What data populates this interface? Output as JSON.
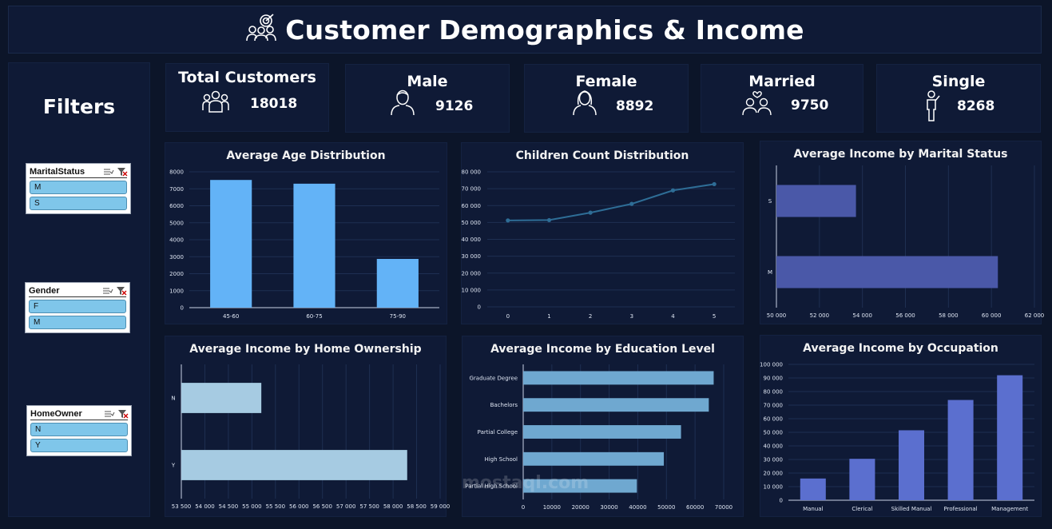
{
  "header": {
    "title": "Customer Demographics & Income",
    "icon": "target-audience-icon"
  },
  "filters": {
    "title": "Filters",
    "slicers": [
      {
        "name": "MaritalStatus",
        "items": [
          "M",
          "S"
        ]
      },
      {
        "name": "Gender",
        "items": [
          "F",
          "M"
        ]
      },
      {
        "name": "HomeOwner",
        "items": [
          "N",
          "Y"
        ]
      }
    ]
  },
  "kpis": [
    {
      "label": "Total Customers",
      "value": "18018",
      "icon": "group-icon"
    },
    {
      "label": "Male",
      "value": "9126",
      "icon": "male-user-icon"
    },
    {
      "label": "Female",
      "value": "8892",
      "icon": "female-user-icon"
    },
    {
      "label": "Married",
      "value": "9750",
      "icon": "couple-icon"
    },
    {
      "label": "Single",
      "value": "8268",
      "icon": "single-person-icon"
    }
  ],
  "watermark": "mostaql.com",
  "chart_data": [
    {
      "id": "age",
      "type": "bar",
      "title": "Average Age Distribution",
      "categories": [
        "45-60",
        "60-75",
        "75-90"
      ],
      "values": [
        7520,
        7300,
        2870
      ],
      "ylim": [
        0,
        8000
      ],
      "yticks": [
        0,
        1000,
        2000,
        3000,
        4000,
        5000,
        6000,
        7000,
        8000
      ],
      "grid": true,
      "color": "#63b3f7"
    },
    {
      "id": "children",
      "type": "line",
      "title": "Children Count Distribution",
      "x": [
        0,
        1,
        2,
        3,
        4,
        5
      ],
      "values": [
        51200,
        51400,
        55800,
        61000,
        69000,
        72700
      ],
      "ylim": [
        0,
        80000
      ],
      "yticks": [
        0,
        10000,
        20000,
        30000,
        40000,
        50000,
        60000,
        70000,
        80000
      ],
      "ytick_labels": [
        "0",
        "10 000",
        "20 000",
        "30 000",
        "40 000",
        "50 000",
        "60 000",
        "70 000",
        "80 000"
      ],
      "grid": true,
      "color": "#2e6d96"
    },
    {
      "id": "marital",
      "type": "bar",
      "orientation": "horizontal",
      "title": "Average Income by Marital Status",
      "categories": [
        "S",
        "M"
      ],
      "values": [
        53700,
        60300
      ],
      "xlim": [
        50000,
        62000
      ],
      "xticks": [
        50000,
        52000,
        54000,
        56000,
        58000,
        60000,
        62000
      ],
      "xtick_labels": [
        "50 000",
        "52 000",
        "54 000",
        "56 000",
        "58 000",
        "60 000",
        "62 000"
      ],
      "grid": true,
      "color": "#4a58a8"
    },
    {
      "id": "home",
      "type": "bar",
      "orientation": "horizontal",
      "title": "Average Income by Home Ownership",
      "categories": [
        "N",
        "Y"
      ],
      "values": [
        55200,
        58300
      ],
      "xlim": [
        53500,
        59000
      ],
      "xticks": [
        53500,
        54000,
        54500,
        55000,
        55500,
        56000,
        56500,
        57000,
        57500,
        58000,
        58500,
        59000
      ],
      "xtick_labels": [
        "53 500",
        "54 000",
        "54 500",
        "55 000",
        "55 500",
        "56 000",
        "56 500",
        "57 000",
        "57 500",
        "58 000",
        "58 500",
        "59 000"
      ],
      "grid": true,
      "color": "#a6cbe2"
    },
    {
      "id": "education",
      "type": "bar",
      "orientation": "horizontal",
      "title": "Average Income by Education Level",
      "categories": [
        "Graduate Degree",
        "Bachelors",
        "Partial College",
        "High School",
        "Partial High School"
      ],
      "values": [
        66500,
        64800,
        55100,
        49100,
        39700
      ],
      "xlim": [
        0,
        70000
      ],
      "xticks": [
        0,
        10000,
        20000,
        30000,
        40000,
        50000,
        60000,
        70000
      ],
      "xtick_labels": [
        "0",
        "10000",
        "20000",
        "30000",
        "40000",
        "50000",
        "60000",
        "70000"
      ],
      "grid": true,
      "color": "#6fa8d0"
    },
    {
      "id": "occupation",
      "type": "bar",
      "title": "Average Income by Occupation",
      "categories": [
        "Manual",
        "Clerical",
        "Skilled Manual",
        "Professional",
        "Management"
      ],
      "values": [
        16000,
        30500,
        51500,
        73800,
        92000
      ],
      "ylim": [
        0,
        100000
      ],
      "yticks": [
        0,
        10000,
        20000,
        30000,
        40000,
        50000,
        60000,
        70000,
        80000,
        90000,
        100000
      ],
      "ytick_labels": [
        "0",
        "10 000",
        "20 000",
        "30 000",
        "40 000",
        "50 000",
        "60 000",
        "70 000",
        "80 000",
        "90 000",
        "100 000"
      ],
      "grid": true,
      "color": "#5b6fcf"
    }
  ]
}
